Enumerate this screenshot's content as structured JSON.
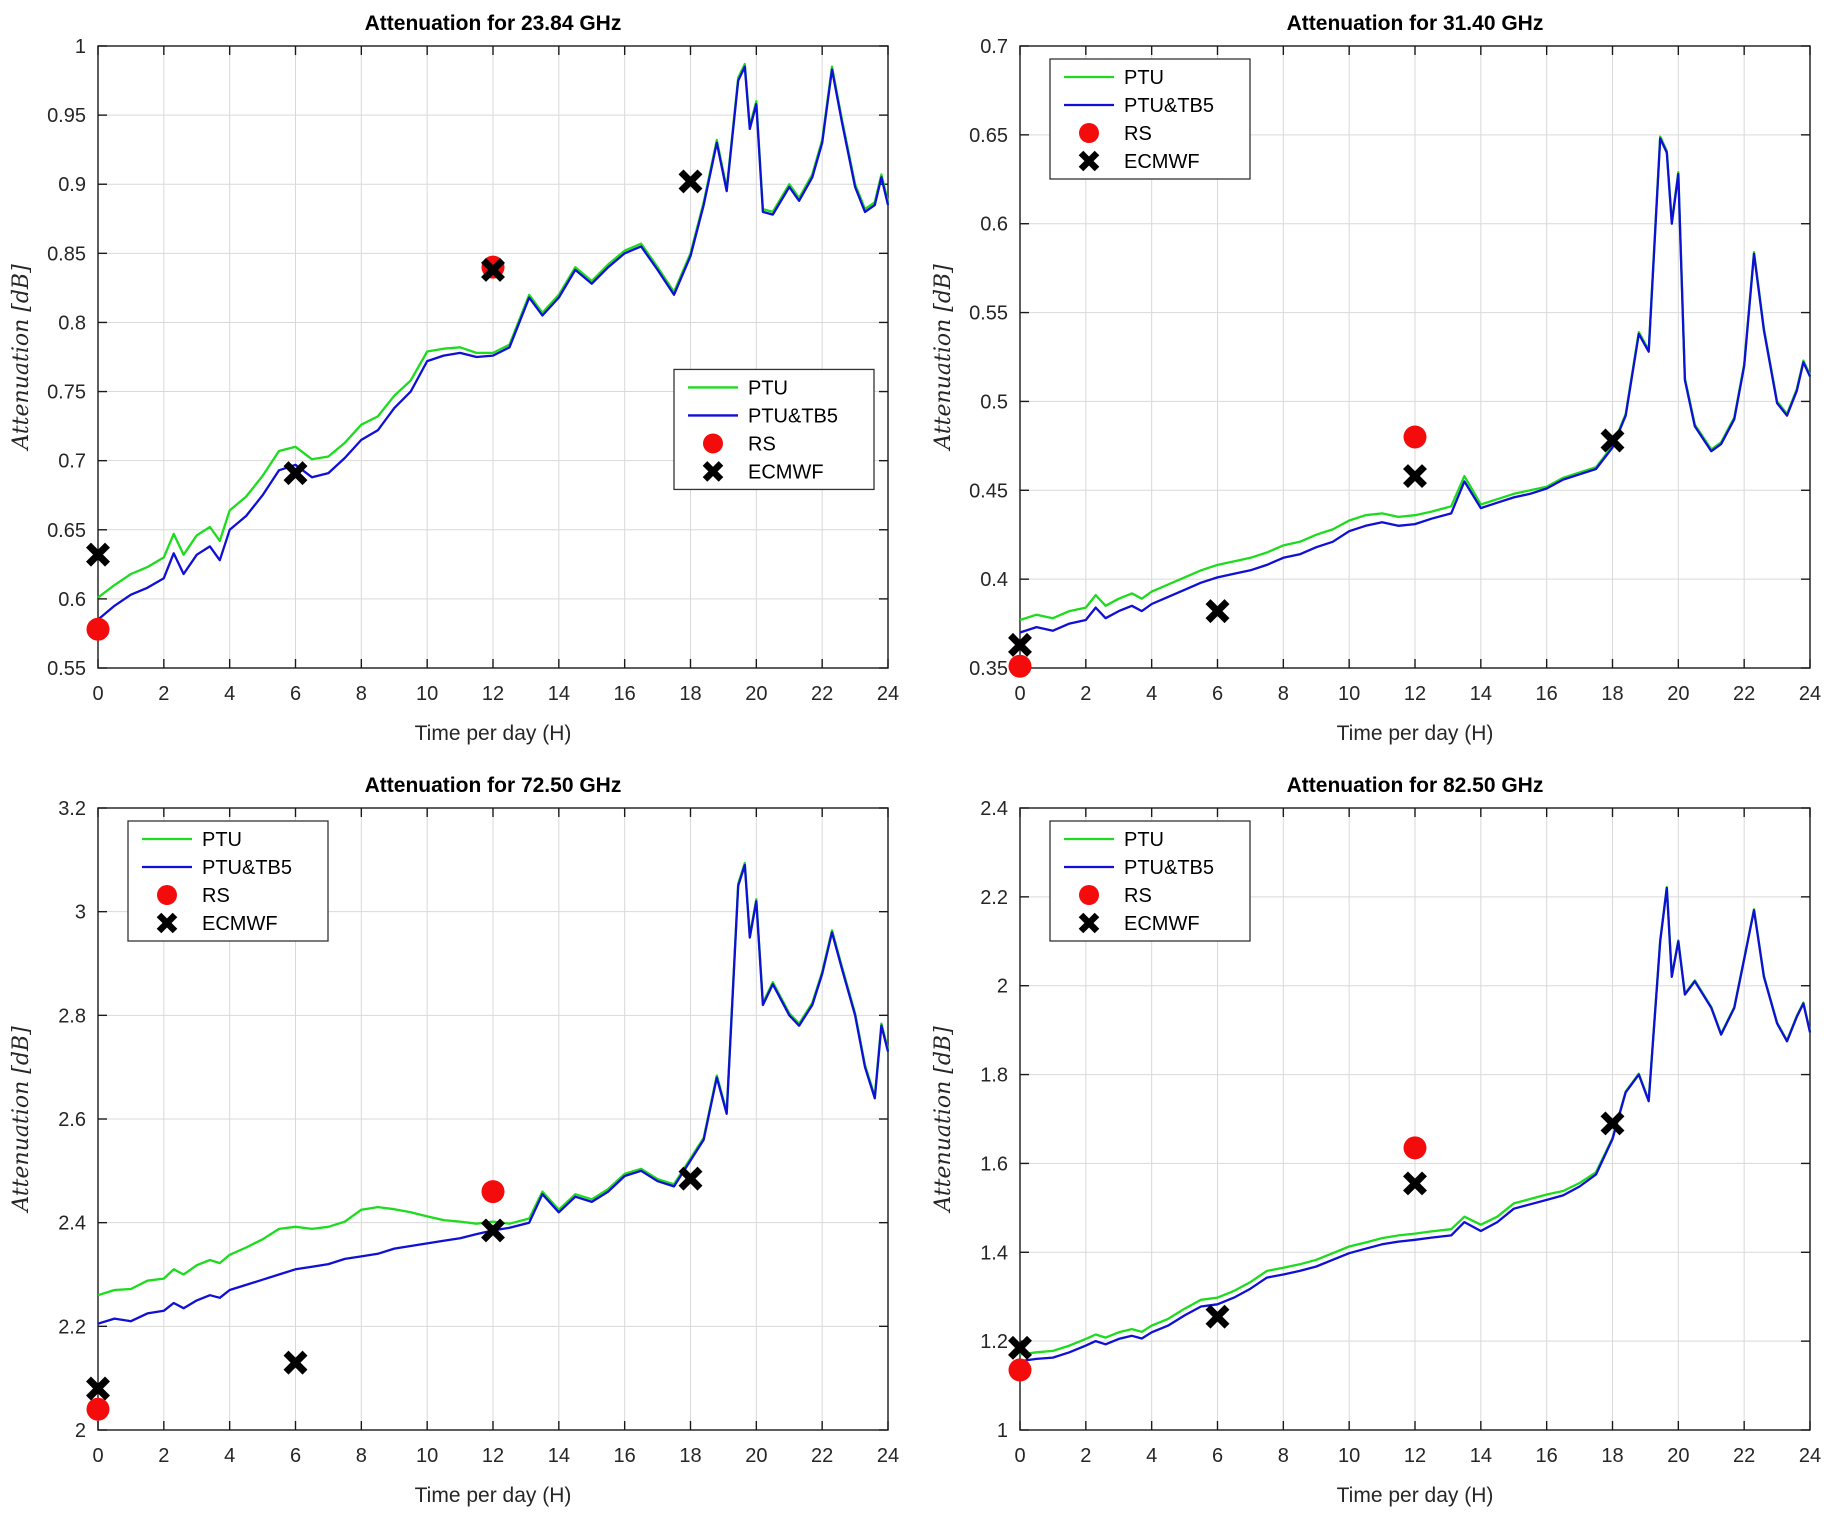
{
  "figure": {
    "background": "#ffffff"
  },
  "shared": {
    "xlabel": "Time per day (H)",
    "ylabel": "Attenuation [dB]",
    "legend_items": [
      "PTU",
      "PTU&TB5",
      "RS",
      "ECMWF"
    ],
    "colors": {
      "PTU": "#1ddb1d",
      "PTU&TB5": "#0f0fd6",
      "RS": "#f40c0c",
      "ECMWF": "#000000",
      "grid": "#d9d9d9",
      "axis": "#1a1a1a",
      "text": "#262626"
    },
    "xlim": [
      0,
      24
    ],
    "xticks": [
      0,
      2,
      4,
      6,
      8,
      10,
      12,
      14,
      16,
      18,
      20,
      22,
      24
    ],
    "x": [
      0,
      0.5,
      1,
      1.5,
      2,
      2.3,
      2.6,
      3,
      3.4,
      3.7,
      4,
      4.5,
      5,
      5.5,
      6,
      6.5,
      7,
      7.5,
      8,
      8.5,
      9,
      9.5,
      10,
      10.5,
      11,
      11.5,
      12,
      12.5,
      13.1,
      13.5,
      14,
      14.5,
      15,
      15.5,
      16,
      16.5,
      17,
      17.5,
      18,
      18.4,
      18.8,
      19.1,
      19.45,
      19.65,
      19.8,
      20,
      20.2,
      20.5,
      21,
      21.3,
      21.7,
      22,
      22.3,
      22.6,
      23,
      23.3,
      23.6,
      23.8,
      24
    ]
  },
  "chart_data": [
    {
      "type": "line",
      "title": "Attenuation for 23.84 GHz",
      "xlabel": "Time per day (H)",
      "ylabel": "Attenuation [dB]",
      "ylim": [
        0.55,
        1
      ],
      "yticks": [
        0.55,
        0.6,
        0.65,
        0.7,
        0.75,
        0.8,
        0.85,
        0.9,
        0.95,
        1
      ],
      "legend_position": "center-right",
      "series": [
        {
          "name": "PTU",
          "values": [
            0.601,
            0.61,
            0.618,
            0.623,
            0.63,
            0.647,
            0.632,
            0.646,
            0.652,
            0.642,
            0.664,
            0.674,
            0.689,
            0.707,
            0.71,
            0.701,
            0.703,
            0.713,
            0.726,
            0.732,
            0.747,
            0.758,
            0.779,
            0.781,
            0.782,
            0.778,
            0.778,
            0.784,
            0.82,
            0.807,
            0.82,
            0.84,
            0.83,
            0.842,
            0.852,
            0.857,
            0.84,
            0.822,
            0.85,
            0.887,
            0.932,
            0.897,
            0.977,
            0.987,
            0.942,
            0.96,
            0.882,
            0.88,
            0.9,
            0.89,
            0.907,
            0.932,
            0.985,
            0.947,
            0.9,
            0.882,
            0.887,
            0.907,
            0.887
          ]
        },
        {
          "name": "PTU&TB5",
          "values": [
            0.585,
            0.595,
            0.603,
            0.608,
            0.615,
            0.633,
            0.618,
            0.632,
            0.638,
            0.628,
            0.65,
            0.66,
            0.675,
            0.693,
            0.697,
            0.688,
            0.691,
            0.702,
            0.715,
            0.722,
            0.738,
            0.75,
            0.772,
            0.776,
            0.778,
            0.775,
            0.776,
            0.782,
            0.818,
            0.805,
            0.818,
            0.838,
            0.828,
            0.84,
            0.85,
            0.855,
            0.838,
            0.82,
            0.848,
            0.885,
            0.93,
            0.895,
            0.975,
            0.985,
            0.94,
            0.958,
            0.88,
            0.878,
            0.898,
            0.888,
            0.905,
            0.93,
            0.983,
            0.945,
            0.898,
            0.88,
            0.885,
            0.905,
            0.885
          ]
        }
      ],
      "markers": [
        {
          "name": "RS",
          "points": [
            [
              0,
              0.578
            ],
            [
              12,
              0.84
            ]
          ]
        },
        {
          "name": "ECMWF",
          "points": [
            [
              0,
              0.632
            ],
            [
              6,
              0.691
            ],
            [
              12,
              0.838
            ],
            [
              18,
              0.902
            ]
          ]
        }
      ]
    },
    {
      "type": "line",
      "title": "Attenuation for 31.40 GHz",
      "xlabel": "Time per day (H)",
      "ylabel": "Attenuation [dB]",
      "ylim": [
        0.35,
        0.7
      ],
      "yticks": [
        0.35,
        0.4,
        0.45,
        0.5,
        0.55,
        0.6,
        0.65,
        0.7
      ],
      "legend_position": "top-left",
      "series": [
        {
          "name": "PTU",
          "values": [
            0.377,
            0.38,
            0.378,
            0.382,
            0.384,
            0.391,
            0.385,
            0.389,
            0.392,
            0.389,
            0.393,
            0.397,
            0.401,
            0.405,
            0.408,
            0.41,
            0.412,
            0.415,
            0.419,
            0.421,
            0.425,
            0.428,
            0.433,
            0.436,
            0.437,
            0.435,
            0.436,
            0.438,
            0.441,
            0.458,
            0.442,
            0.445,
            0.448,
            0.45,
            0.452,
            0.457,
            0.46,
            0.463,
            0.475,
            0.493,
            0.539,
            0.529,
            0.649,
            0.641,
            0.601,
            0.629,
            0.513,
            0.487,
            0.473,
            0.477,
            0.491,
            0.521,
            0.584,
            0.541,
            0.5,
            0.493,
            0.507,
            0.523,
            0.515
          ]
        },
        {
          "name": "PTU&TB5",
          "values": [
            0.37,
            0.373,
            0.371,
            0.375,
            0.377,
            0.384,
            0.378,
            0.382,
            0.385,
            0.382,
            0.386,
            0.39,
            0.394,
            0.398,
            0.401,
            0.403,
            0.405,
            0.408,
            0.412,
            0.414,
            0.418,
            0.421,
            0.427,
            0.43,
            0.432,
            0.43,
            0.431,
            0.434,
            0.437,
            0.455,
            0.44,
            0.443,
            0.446,
            0.448,
            0.451,
            0.456,
            0.459,
            0.462,
            0.474,
            0.492,
            0.538,
            0.528,
            0.648,
            0.64,
            0.6,
            0.628,
            0.512,
            0.486,
            0.472,
            0.476,
            0.49,
            0.52,
            0.583,
            0.54,
            0.499,
            0.492,
            0.506,
            0.522,
            0.514
          ]
        }
      ],
      "markers": [
        {
          "name": "RS",
          "points": [
            [
              0,
              0.351
            ],
            [
              12,
              0.48
            ]
          ]
        },
        {
          "name": "ECMWF",
          "points": [
            [
              0,
              0.363
            ],
            [
              6,
              0.382
            ],
            [
              12,
              0.458
            ],
            [
              18,
              0.478
            ]
          ]
        }
      ]
    },
    {
      "type": "line",
      "title": "Attenuation for 72.50 GHz",
      "xlabel": "Time per day (H)",
      "ylabel": "Attenuation [dB]",
      "ylim": [
        2,
        3.2
      ],
      "yticks": [
        2,
        2.2,
        2.4,
        2.6,
        2.8,
        3,
        3.2
      ],
      "legend_position": "top-left",
      "series": [
        {
          "name": "PTU",
          "values": [
            2.26,
            2.27,
            2.272,
            2.288,
            2.292,
            2.31,
            2.3,
            2.318,
            2.328,
            2.322,
            2.338,
            2.352,
            2.368,
            2.388,
            2.392,
            2.388,
            2.392,
            2.402,
            2.425,
            2.43,
            2.426,
            2.42,
            2.412,
            2.405,
            2.402,
            2.398,
            2.402,
            2.398,
            2.408,
            2.46,
            2.425,
            2.455,
            2.445,
            2.465,
            2.494,
            2.504,
            2.484,
            2.474,
            2.524,
            2.564,
            2.684,
            2.614,
            3.054,
            3.094,
            2.954,
            3.024,
            2.824,
            2.864,
            2.804,
            2.784,
            2.824,
            2.884,
            2.964,
            2.894,
            2.804,
            2.704,
            2.644,
            2.784,
            2.734
          ]
        },
        {
          "name": "PTU&TB5",
          "values": [
            2.205,
            2.215,
            2.21,
            2.225,
            2.23,
            2.245,
            2.235,
            2.25,
            2.26,
            2.255,
            2.27,
            2.28,
            2.29,
            2.3,
            2.31,
            2.315,
            2.32,
            2.33,
            2.335,
            2.34,
            2.35,
            2.355,
            2.36,
            2.365,
            2.37,
            2.378,
            2.385,
            2.39,
            2.4,
            2.455,
            2.42,
            2.45,
            2.44,
            2.46,
            2.49,
            2.5,
            2.48,
            2.47,
            2.52,
            2.56,
            2.68,
            2.61,
            3.05,
            3.09,
            2.95,
            3.02,
            2.82,
            2.86,
            2.8,
            2.78,
            2.82,
            2.88,
            2.96,
            2.89,
            2.8,
            2.7,
            2.64,
            2.78,
            2.73
          ]
        }
      ],
      "markers": [
        {
          "name": "RS",
          "points": [
            [
              0,
              2.04
            ],
            [
              12,
              2.46
            ]
          ]
        },
        {
          "name": "ECMWF",
          "points": [
            [
              0,
              2.08
            ],
            [
              6,
              2.13
            ],
            [
              12,
              2.385
            ],
            [
              18,
              2.485
            ]
          ]
        }
      ]
    },
    {
      "type": "line",
      "title": "Attenuation for 82.50 GHz",
      "xlabel": "Time per day (H)",
      "ylabel": "Attenuation [dB]",
      "ylim": [
        1,
        2.4
      ],
      "yticks": [
        1,
        1.2,
        1.4,
        1.6,
        1.8,
        2,
        2.2,
        2.4
      ],
      "legend_position": "top-left",
      "series": [
        {
          "name": "PTU",
          "values": [
            1.17,
            1.175,
            1.178,
            1.19,
            1.205,
            1.215,
            1.208,
            1.22,
            1.227,
            1.221,
            1.235,
            1.25,
            1.273,
            1.293,
            1.298,
            1.313,
            1.333,
            1.358,
            1.365,
            1.373,
            1.383,
            1.398,
            1.413,
            1.422,
            1.432,
            1.438,
            1.442,
            1.447,
            1.452,
            1.48,
            1.462,
            1.48,
            1.51,
            1.52,
            1.53,
            1.538,
            1.556,
            1.58,
            1.657,
            1.762,
            1.802,
            1.742,
            2.102,
            2.222,
            2.022,
            2.102,
            1.982,
            2.012,
            1.952,
            1.892,
            1.952,
            2.062,
            2.172,
            2.022,
            1.917,
            1.877,
            1.932,
            1.962,
            1.897
          ]
        },
        {
          "name": "PTU&TB5",
          "values": [
            1.155,
            1.16,
            1.163,
            1.175,
            1.19,
            1.2,
            1.193,
            1.205,
            1.212,
            1.206,
            1.22,
            1.235,
            1.258,
            1.278,
            1.283,
            1.298,
            1.318,
            1.343,
            1.35,
            1.358,
            1.368,
            1.383,
            1.398,
            1.408,
            1.418,
            1.424,
            1.428,
            1.433,
            1.438,
            1.468,
            1.448,
            1.468,
            1.498,
            1.508,
            1.518,
            1.528,
            1.548,
            1.575,
            1.655,
            1.76,
            1.8,
            1.74,
            2.1,
            2.22,
            2.02,
            2.1,
            1.98,
            2.01,
            1.95,
            1.89,
            1.95,
            2.06,
            2.17,
            2.02,
            1.915,
            1.875,
            1.93,
            1.96,
            1.895
          ]
        }
      ],
      "markers": [
        {
          "name": "RS",
          "points": [
            [
              0,
              1.135
            ],
            [
              12,
              1.635
            ]
          ]
        },
        {
          "name": "ECMWF",
          "points": [
            [
              0,
              1.185
            ],
            [
              6,
              1.255
            ],
            [
              12,
              1.555
            ],
            [
              18,
              1.69
            ]
          ]
        }
      ]
    }
  ]
}
